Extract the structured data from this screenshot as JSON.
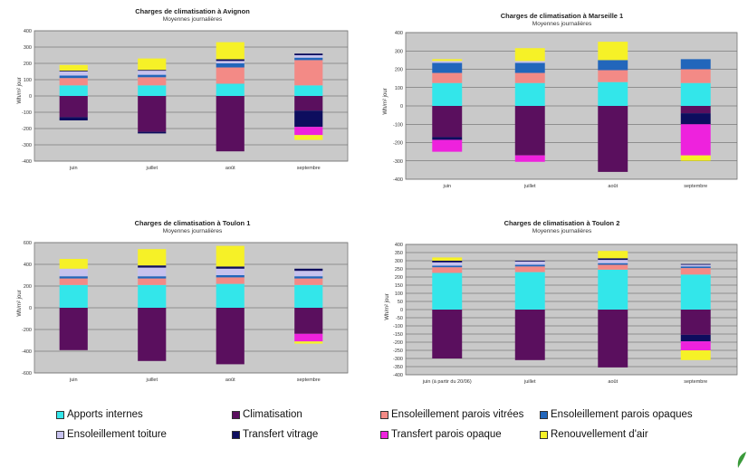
{
  "colors": {
    "apports": "#33e6ea",
    "clim": "#5a0f5e",
    "ens_vitrees": "#f38a86",
    "ens_opaques": "#2266bb",
    "ens_toiture": "#c7c2ee",
    "transf_vitrage": "#0d0d5e",
    "transf_opaque": "#ee22dd",
    "renouv": "#f6f127"
  },
  "y_axis_label": "Wh/m² jour",
  "legend": [
    {
      "key": "apports",
      "label": "Apports internes"
    },
    {
      "key": "clim",
      "label": "Climatisation"
    },
    {
      "key": "ens_vitrees",
      "label": "Ensoleillement parois vitrées"
    },
    {
      "key": "ens_opaques",
      "label": "Ensoleillement parois opaques"
    },
    {
      "key": "ens_toiture",
      "label": "Ensoleillement toiture"
    },
    {
      "key": "transf_vitrage",
      "label": "Transfert vitrage"
    },
    {
      "key": "transf_opaque",
      "label": "Transfert parois opaque"
    },
    {
      "key": "renouv",
      "label": "Renouvellement d'air"
    }
  ],
  "chart_data": [
    {
      "type": "bar",
      "stacked": true,
      "title": "Charges de climatisation à Avignon",
      "subtitle": "Moyennes journalières",
      "ylabel": "Wh/m² jour",
      "ylim": [
        -400,
        400
      ],
      "yticks": [
        -400,
        -300,
        -200,
        -100,
        0,
        100,
        200,
        300,
        400
      ],
      "categories": [
        "juin",
        "juillet",
        "août",
        "septembre"
      ],
      "series": [
        {
          "key": "apports",
          "name": "Apports internes",
          "values": [
            65,
            65,
            75,
            65
          ]
        },
        {
          "key": "ens_vitrees",
          "name": "Ensoleillement parois vitrées",
          "values": [
            45,
            50,
            100,
            155
          ]
        },
        {
          "key": "ens_opaques",
          "name": "Ensoleillement parois opaques",
          "values": [
            15,
            15,
            25,
            15
          ]
        },
        {
          "key": "ens_toiture",
          "name": "Ensoleillement toiture",
          "values": [
            25,
            25,
            15,
            15
          ]
        },
        {
          "key": "transf_vitrage",
          "name": "Transfert vitrage",
          "values": [
            5,
            5,
            10,
            10
          ]
        },
        {
          "key": "renouv",
          "name": "Renouvellement d'air",
          "values": [
            35,
            70,
            105,
            0
          ]
        },
        {
          "key": "clim",
          "name": "Climatisation",
          "values": [
            -130,
            -220,
            -340,
            -90
          ]
        },
        {
          "key": "transf_vitrage",
          "name": "Transfert vitrage",
          "values": [
            -20,
            -10,
            0,
            -100
          ]
        },
        {
          "key": "transf_opaque",
          "name": "Transfert parois opaque",
          "values": [
            0,
            0,
            0,
            -50
          ]
        },
        {
          "key": "renouv",
          "name": "Renouvellement d'air",
          "values": [
            0,
            0,
            0,
            -30
          ]
        }
      ]
    },
    {
      "type": "bar",
      "stacked": true,
      "title": "Charges de climatisation à Marseille 1",
      "subtitle": "Moyennes journalières",
      "ylabel": "Wh/m² jour",
      "ylim": [
        -400,
        400
      ],
      "yticks": [
        -400,
        -300,
        -200,
        -100,
        0,
        100,
        200,
        300,
        400
      ],
      "categories": [
        "juin",
        "juillet",
        "août",
        "septembre"
      ],
      "series": [
        {
          "key": "apports",
          "name": "Apports internes",
          "values": [
            125,
            125,
            130,
            125
          ]
        },
        {
          "key": "ens_vitrees",
          "name": "Ensoleillement parois vitrées",
          "values": [
            55,
            55,
            65,
            75
          ]
        },
        {
          "key": "ens_opaques",
          "name": "Ensoleillement parois opaques",
          "values": [
            55,
            55,
            55,
            55
          ]
        },
        {
          "key": "ens_toiture",
          "name": "Ensoleillement toiture",
          "values": [
            10,
            10,
            0,
            0
          ]
        },
        {
          "key": "renouv",
          "name": "Renouvellement d'air",
          "values": [
            10,
            70,
            100,
            0
          ]
        },
        {
          "key": "clim",
          "name": "Climatisation",
          "values": [
            -170,
            -270,
            -360,
            -40
          ]
        },
        {
          "key": "transf_vitrage",
          "name": "Transfert vitrage",
          "values": [
            -15,
            0,
            0,
            -60
          ]
        },
        {
          "key": "transf_opaque",
          "name": "Transfert parois opaque",
          "values": [
            -65,
            -35,
            0,
            -170
          ]
        },
        {
          "key": "renouv",
          "name": "Renouvellement d'air",
          "values": [
            0,
            0,
            0,
            -30
          ]
        }
      ]
    },
    {
      "type": "bar",
      "stacked": true,
      "title": "Charges de climatisation à Toulon 1",
      "subtitle": "Moyennes journalières",
      "ylabel": "Wh/m² jour",
      "ylim": [
        -600,
        600
      ],
      "yticks": [
        -600,
        -400,
        -200,
        0,
        200,
        400,
        600
      ],
      "categories": [
        "juin",
        "juillet",
        "août",
        "septembre"
      ],
      "series": [
        {
          "key": "apports",
          "name": "Apports internes",
          "values": [
            210,
            210,
            220,
            210
          ]
        },
        {
          "key": "ens_vitrees",
          "name": "Ensoleillement parois vitrées",
          "values": [
            60,
            60,
            60,
            60
          ]
        },
        {
          "key": "ens_opaques",
          "name": "Ensoleillement parois opaques",
          "values": [
            20,
            20,
            20,
            20
          ]
        },
        {
          "key": "ens_toiture",
          "name": "Ensoleillement toiture",
          "values": [
            70,
            80,
            60,
            50
          ]
        },
        {
          "key": "transf_vitrage",
          "name": "Transfert vitrage",
          "values": [
            0,
            20,
            20,
            20
          ]
        },
        {
          "key": "renouv",
          "name": "Renouvellement d'air",
          "values": [
            90,
            150,
            190,
            0
          ]
        },
        {
          "key": "clim",
          "name": "Climatisation",
          "values": [
            -390,
            -490,
            -520,
            -240
          ]
        },
        {
          "key": "transf_opaque",
          "name": "Transfert parois opaque",
          "values": [
            0,
            0,
            0,
            -70
          ]
        },
        {
          "key": "renouv",
          "name": "Renouvellement d'air",
          "values": [
            0,
            0,
            0,
            -20
          ]
        }
      ]
    },
    {
      "type": "bar",
      "stacked": true,
      "title": "Charges de climatisation à Toulon 2",
      "subtitle": "Moyennes journalières",
      "ylabel": "Wh/m² jour",
      "ylim": [
        -400,
        400
      ],
      "yticks": [
        -400,
        -350,
        -300,
        -250,
        -200,
        -150,
        -100,
        -50,
        0,
        50,
        100,
        150,
        200,
        250,
        300,
        350,
        400
      ],
      "categories": [
        "juin (à partir du 20/06)",
        "juillet",
        "août",
        "septembre"
      ],
      "series": [
        {
          "key": "apports",
          "name": "Apports internes",
          "values": [
            225,
            230,
            245,
            215
          ]
        },
        {
          "key": "ens_vitrees",
          "name": "Ensoleillement parois vitrées",
          "values": [
            35,
            35,
            30,
            40
          ]
        },
        {
          "key": "ens_opaques",
          "name": "Ensoleillement parois opaques",
          "values": [
            10,
            10,
            10,
            10
          ]
        },
        {
          "key": "ens_toiture",
          "name": "Ensoleillement toiture",
          "values": [
            20,
            20,
            20,
            10
          ]
        },
        {
          "key": "transf_vitrage",
          "name": "Transfert vitrage",
          "values": [
            10,
            5,
            10,
            5
          ]
        },
        {
          "key": "renouv",
          "name": "Renouvellement d'air",
          "values": [
            20,
            0,
            45,
            0
          ]
        },
        {
          "key": "clim",
          "name": "Climatisation",
          "values": [
            -300,
            -310,
            -355,
            -155
          ]
        },
        {
          "key": "transf_vitrage",
          "name": "Transfert vitrage",
          "values": [
            0,
            0,
            0,
            -40
          ]
        },
        {
          "key": "transf_opaque",
          "name": "Transfert parois opaque",
          "values": [
            0,
            0,
            0,
            -55
          ]
        },
        {
          "key": "renouv",
          "name": "Renouvellement d'air",
          "values": [
            0,
            0,
            0,
            -60
          ]
        }
      ]
    }
  ]
}
